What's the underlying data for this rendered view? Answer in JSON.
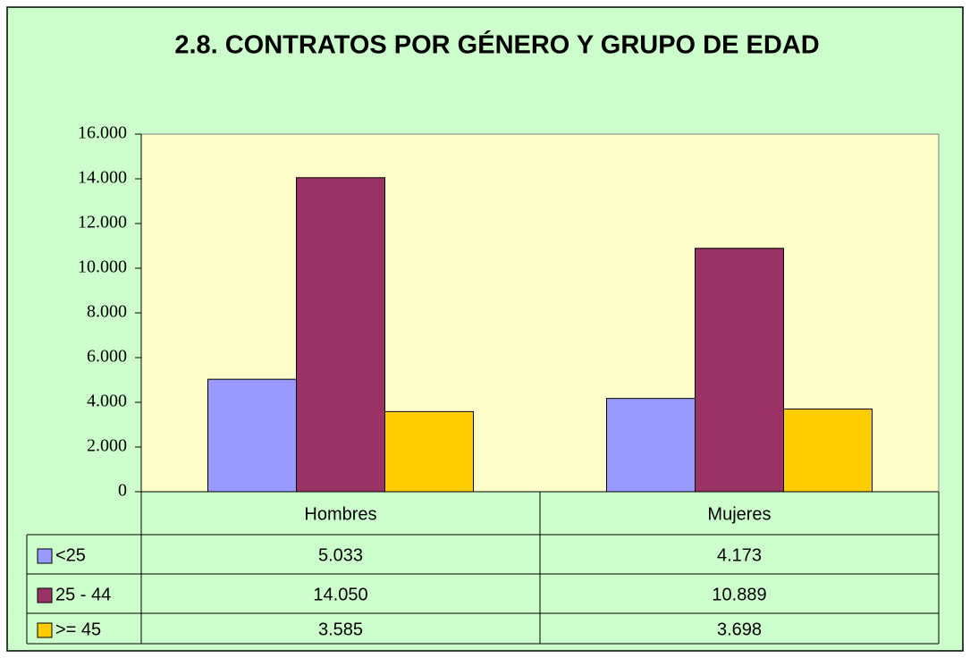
{
  "chart_data": {
    "type": "bar",
    "title": "2.8. CONTRATOS POR GÉNERO Y GRUPO DE EDAD",
    "categories": [
      "Hombres",
      "Mujeres"
    ],
    "series": [
      {
        "name": "<25",
        "color": "#9999ff",
        "values": [
          5033,
          4173
        ],
        "value_labels": [
          "5.033",
          "4.173"
        ]
      },
      {
        "name": "25 - 44",
        "color": "#993366",
        "values": [
          14050,
          10889
        ],
        "value_labels": [
          "14.050",
          "10.889"
        ]
      },
      {
        "name": ">= 45",
        "color": "#ffcc00",
        "values": [
          3585,
          3698
        ],
        "value_labels": [
          "3.585",
          "3.698"
        ]
      }
    ],
    "ylim": [
      0,
      16000
    ],
    "yticks": [
      0,
      {
        "value": 2000,
        "label": "2.000"
      },
      {
        "value": 4000,
        "label": "4.000"
      },
      {
        "value": 6000,
        "label": "6.000"
      },
      {
        "value": 8000,
        "label": "8.000"
      },
      {
        "value": 10000,
        "label": "10.000"
      },
      {
        "value": 12000,
        "label": "12.000"
      },
      {
        "value": 14000,
        "label": "14.000"
      },
      {
        "value": 16000,
        "label": "16.000"
      }
    ],
    "grid": false
  }
}
